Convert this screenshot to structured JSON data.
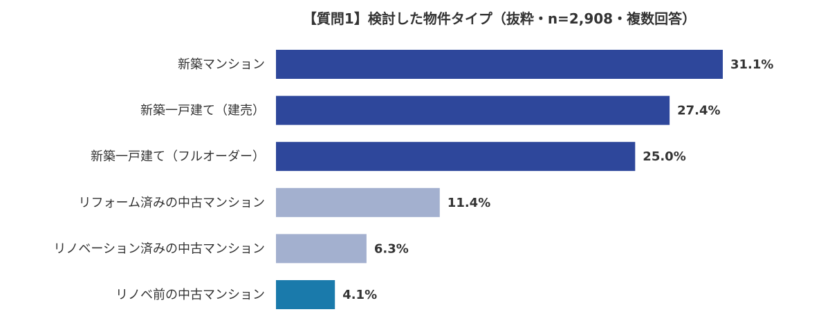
{
  "chart_data": {
    "type": "bar",
    "orientation": "horizontal",
    "title": "【質問1】検討した物件タイプ（抜粋・n=2,908・複数回答）",
    "categories": [
      "新築マンション",
      "新築一戸建て（建売）",
      "新築一戸建て（フルオーダー）",
      "リフォーム済みの中古マンション",
      "リノベーション済みの中古マンション",
      "リノベ前の中古マンション"
    ],
    "values": [
      31.1,
      27.4,
      25.0,
      11.4,
      6.3,
      4.1
    ],
    "value_labels": [
      "31.1%",
      "27.4%",
      "25.0%",
      "11.4%",
      "6.3%",
      "4.1%"
    ],
    "bar_colors": [
      "#2e479b",
      "#2e479b",
      "#2e479b",
      "#a3b0cf",
      "#a3b0cf",
      "#1a7aab"
    ],
    "unit": "%",
    "xlabel": "",
    "ylabel": "",
    "xlim": [
      0,
      31.1
    ],
    "grid": false,
    "legend": "none"
  }
}
